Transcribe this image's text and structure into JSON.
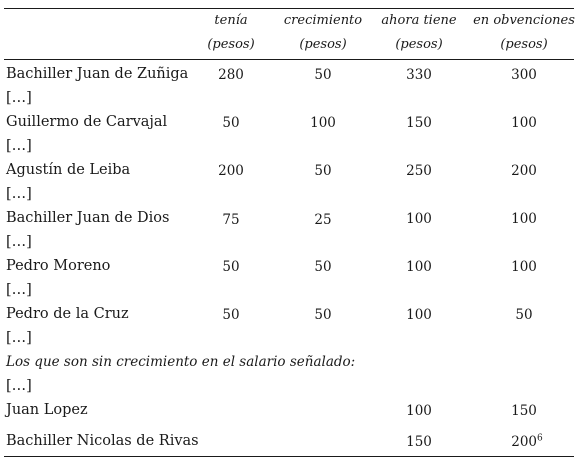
{
  "headers": [
    {
      "title": "tenía",
      "unit": "(pesos)"
    },
    {
      "title": "crecimiento",
      "unit": "(pesos)"
    },
    {
      "title": "ahora tiene",
      "unit": "(pesos)"
    },
    {
      "title": "en obvenciones",
      "unit": "(pesos)"
    }
  ],
  "rows": [
    {
      "name": "Bachiller Juan de Zuñiga",
      "tenia": "280",
      "crecimiento": "50",
      "ahora": "330",
      "obvenciones": "300"
    },
    {
      "name": "[…]"
    },
    {
      "name": "Guillermo de Carvajal",
      "tenia": "50",
      "crecimiento": "100",
      "ahora": "150",
      "obvenciones": "100"
    },
    {
      "name": "[…]"
    },
    {
      "name": "Agustín de Leiba",
      "tenia": "200",
      "crecimiento": "50",
      "ahora": "250",
      "obvenciones": "200"
    },
    {
      "name": "[…]"
    },
    {
      "name": "Bachiller Juan de Dios",
      "tenia": "75",
      "crecimiento": "25",
      "ahora": "100",
      "obvenciones": "100"
    },
    {
      "name": "[…]"
    },
    {
      "name": "Pedro Moreno",
      "tenia": "50",
      "crecimiento": "50",
      "ahora": "100",
      "obvenciones": "100"
    },
    {
      "name": "[…]"
    },
    {
      "name": "Pedro de la Cruz",
      "tenia": "50",
      "crecimiento": "50",
      "ahora": "100",
      "obvenciones": "50"
    },
    {
      "name": "[…]"
    },
    {
      "note": "Los que son sin crecimiento en el salario señalado:"
    },
    {
      "name": "[…]"
    },
    {
      "name": "Juan Lopez",
      "tenia": "",
      "crecimiento": "",
      "ahora": "100",
      "obvenciones": "150"
    },
    {
      "name": "Bachiller Nicolas de Rivas",
      "tenia": "",
      "crecimiento": "",
      "ahora": "150",
      "obvenciones": "200",
      "footnote": "6"
    }
  ]
}
